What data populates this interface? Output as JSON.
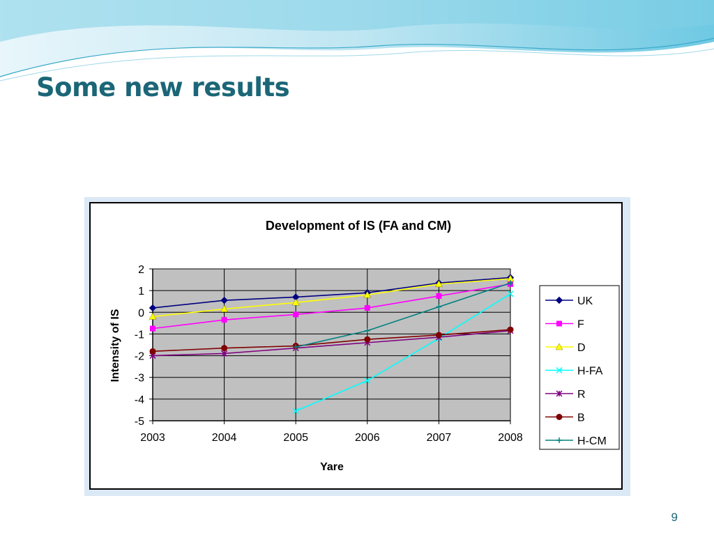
{
  "slide": {
    "title": "Some new results",
    "page_number": "9"
  },
  "colors": {
    "title": "#1b6677",
    "plot_background": "#c0c0c0",
    "wave_light": "#bfe6f2",
    "wave_mid": "#6ec9e3"
  },
  "chart_data": {
    "type": "line",
    "title": "Development of IS (FA and CM)",
    "xlabel": "Yare",
    "ylabel": "Intensity of IS",
    "x": [
      2003,
      2004,
      2005,
      2006,
      2007,
      2008
    ],
    "x_tick_labels": [
      "2003",
      "2004",
      "2005",
      "2006",
      "2007",
      "2008"
    ],
    "ylim": [
      -5,
      2
    ],
    "y_ticks": [
      2,
      1,
      0,
      -1,
      -2,
      -3,
      -4,
      -5
    ],
    "y_tick_labels": [
      "2",
      "1",
      "0",
      "-1",
      "-2",
      "-3",
      "-4",
      "-5"
    ],
    "grid": true,
    "legend_position": "right",
    "series": [
      {
        "name": "UK",
        "color": "#000080",
        "marker": "diamond",
        "values": [
          0.2,
          0.55,
          0.7,
          0.9,
          1.35,
          1.6
        ]
      },
      {
        "name": "F",
        "color": "#ff00ff",
        "marker": "square",
        "values": [
          -0.75,
          -0.35,
          -0.1,
          0.2,
          0.75,
          1.3
        ]
      },
      {
        "name": "D",
        "color": "#ffff00",
        "marker": "triangle",
        "values": [
          -0.2,
          0.15,
          0.45,
          0.8,
          1.3,
          1.55
        ]
      },
      {
        "name": "H-FA",
        "color": "#00ffff",
        "marker": "x",
        "values": [
          null,
          null,
          -4.55,
          -3.15,
          -1.2,
          0.85
        ]
      },
      {
        "name": "R",
        "color": "#800080",
        "marker": "star",
        "values": [
          -2.0,
          -1.9,
          -1.65,
          -1.4,
          -1.15,
          -0.85
        ]
      },
      {
        "name": "B",
        "color": "#800000",
        "marker": "circle",
        "values": [
          -1.8,
          -1.65,
          -1.55,
          -1.25,
          -1.05,
          -0.8
        ]
      },
      {
        "name": "H-CM",
        "color": "#008080",
        "marker": "plus",
        "values": [
          null,
          null,
          -1.6,
          -0.85,
          0.25,
          1.35
        ]
      }
    ]
  }
}
